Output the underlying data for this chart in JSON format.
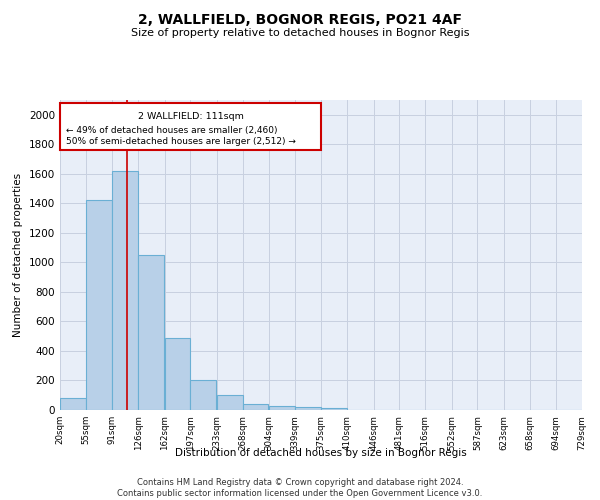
{
  "title": "2, WALLFIELD, BOGNOR REGIS, PO21 4AF",
  "subtitle": "Size of property relative to detached houses in Bognor Regis",
  "xlabel": "Distribution of detached houses by size in Bognor Regis",
  "ylabel": "Number of detached properties",
  "bar_color": "#b8d0e8",
  "bar_edge_color": "#6aafd4",
  "bg_color": "#e8eef8",
  "grid_color": "#c8d0e0",
  "annotation_box_color": "#cc0000",
  "annotation_text_line1": "2 WALLFIELD: 111sqm",
  "annotation_text_line2": "← 49% of detached houses are smaller (2,460)",
  "annotation_text_line3": "50% of semi-detached houses are larger (2,512) →",
  "red_line_x": 111,
  "bins": [
    20,
    55,
    91,
    126,
    162,
    197,
    233,
    268,
    304,
    339,
    375,
    410,
    446,
    481,
    516,
    552,
    587,
    623,
    658,
    694,
    729
  ],
  "bar_heights": [
    80,
    1420,
    1620,
    1050,
    490,
    205,
    105,
    40,
    25,
    20,
    15,
    0,
    0,
    0,
    0,
    0,
    0,
    0,
    0,
    0
  ],
  "ylim": [
    0,
    2100
  ],
  "yticks": [
    0,
    200,
    400,
    600,
    800,
    1000,
    1200,
    1400,
    1600,
    1800,
    2000
  ],
  "tick_labels": [
    "20sqm",
    "55sqm",
    "91sqm",
    "126sqm",
    "162sqm",
    "197sqm",
    "233sqm",
    "268sqm",
    "304sqm",
    "339sqm",
    "375sqm",
    "410sqm",
    "446sqm",
    "481sqm",
    "516sqm",
    "552sqm",
    "587sqm",
    "623sqm",
    "658sqm",
    "694sqm",
    "729sqm"
  ],
  "footer": "Contains HM Land Registry data © Crown copyright and database right 2024.\nContains public sector information licensed under the Open Government Licence v3.0.",
  "figsize": [
    6.0,
    5.0
  ],
  "dpi": 100
}
